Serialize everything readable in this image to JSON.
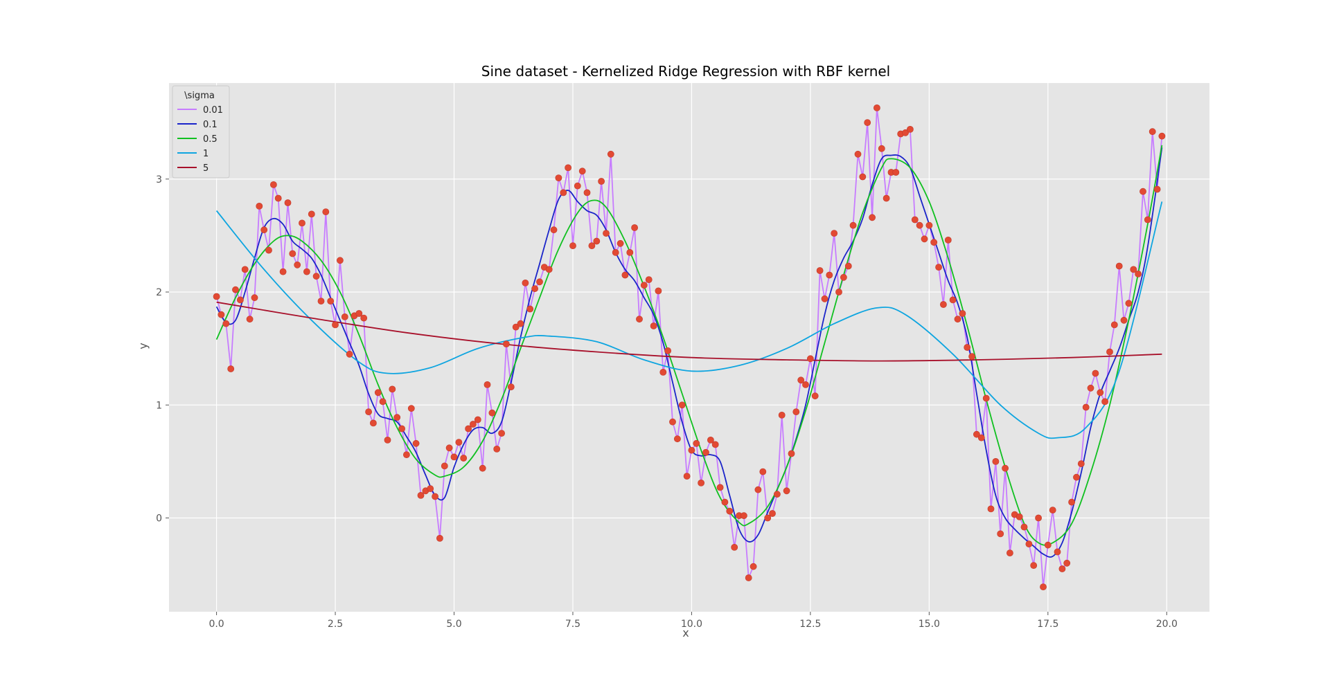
{
  "chart_data": {
    "type": "line",
    "title": "Sine dataset - Kernelized Ridge Regression with RBF kernel",
    "xlabel": "x",
    "ylabel": "y",
    "xlim": [
      -1.0,
      20.9
    ],
    "ylim": [
      -0.83,
      3.85
    ],
    "xticks": [
      0.0,
      2.5,
      5.0,
      7.5,
      10.0,
      12.5,
      15.0,
      17.5,
      20.0
    ],
    "xtick_labels": [
      "0.0",
      "2.5",
      "5.0",
      "7.5",
      "10.0",
      "12.5",
      "15.0",
      "17.5",
      "20.0"
    ],
    "yticks": [
      0,
      1,
      2,
      3
    ],
    "ytick_labels": [
      "0",
      "1",
      "2",
      "3"
    ],
    "grid": true,
    "legend": {
      "title": "\\sigma",
      "placement": "top-left"
    },
    "scatter_color": "#E24A33",
    "x_start": 0.0,
    "x_step": 0.1,
    "points_y": [
      1.96,
      1.8,
      1.72,
      1.32,
      2.02,
      1.93,
      2.2,
      1.76,
      1.95,
      2.76,
      2.55,
      2.37,
      2.95,
      2.83,
      2.18,
      2.79,
      2.34,
      2.24,
      2.61,
      2.18,
      2.69,
      2.14,
      1.92,
      2.71,
      1.92,
      1.71,
      2.28,
      1.78,
      1.45,
      1.79,
      1.81,
      1.77,
      0.94,
      0.84,
      1.11,
      1.03,
      0.69,
      1.14,
      0.89,
      0.79,
      0.56,
      0.97,
      0.66,
      0.2,
      0.24,
      0.26,
      0.19,
      -0.18,
      0.46,
      0.62,
      0.54,
      0.67,
      0.53,
      0.79,
      0.83,
      0.87,
      0.44,
      1.18,
      0.93,
      0.61,
      0.75,
      1.54,
      1.16,
      1.69,
      1.72,
      2.08,
      1.85,
      2.03,
      2.09,
      2.22,
      2.2,
      2.55,
      3.01,
      2.88,
      3.1,
      2.41,
      2.94,
      3.07,
      2.88,
      2.41,
      2.45,
      2.98,
      2.52,
      3.22,
      2.35,
      2.43,
      2.15,
      2.35,
      2.57,
      1.76,
      2.06,
      2.11,
      1.7,
      2.01,
      1.29,
      1.48,
      0.85,
      0.7,
      1.0,
      0.37,
      0.6,
      0.66,
      0.31,
      0.58,
      0.69,
      0.65,
      0.27,
      0.14,
      0.06,
      -0.26,
      0.02,
      0.02,
      -0.53,
      -0.43,
      0.25,
      0.41,
      0.0,
      0.04,
      0.21,
      0.91,
      0.24,
      0.57,
      0.94,
      1.22,
      1.18,
      1.41,
      1.08,
      2.19,
      1.94,
      2.15,
      2.52,
      2.0,
      2.13,
      2.23,
      2.59,
      3.22,
      3.02,
      3.5,
      2.66,
      3.63,
      3.27,
      2.83,
      3.06,
      3.06,
      3.4,
      3.41,
      3.44,
      2.64,
      2.59,
      2.47,
      2.59,
      2.44,
      2.22,
      1.89,
      2.46,
      1.93,
      1.76,
      1.81,
      1.51,
      1.43,
      0.74,
      0.71,
      1.06,
      0.08,
      0.5,
      -0.14,
      0.44,
      -0.31,
      0.03,
      0.01,
      -0.08,
      -0.23,
      -0.42,
      0.0,
      -0.61,
      -0.24,
      0.07,
      -0.3,
      -0.45,
      -0.4,
      0.14,
      0.36,
      0.48,
      0.98,
      1.15,
      1.28,
      1.11,
      1.03,
      1.47,
      1.71,
      2.23,
      1.75,
      1.9,
      2.2,
      2.16,
      2.89,
      2.64,
      3.42,
      2.91,
      3.38
    ],
    "series": [
      {
        "name": "0.01",
        "color": "#C77CFF",
        "interpolates_points": true
      },
      {
        "name": "0.1",
        "color": "#1A24C9",
        "x": [
          0,
          0.2,
          0.4,
          0.6,
          0.8,
          1.0,
          1.2,
          1.4,
          1.6,
          1.8,
          2.0,
          2.2,
          2.4,
          2.6,
          2.8,
          3.0,
          3.2,
          3.4,
          3.6,
          3.8,
          4.0,
          4.2,
          4.4,
          4.6,
          4.8,
          5.0,
          5.2,
          5.4,
          5.6,
          5.8,
          6.0,
          6.2,
          6.4,
          6.6,
          6.8,
          7.0,
          7.2,
          7.4,
          7.6,
          7.8,
          8.0,
          8.2,
          8.4,
          8.6,
          8.8,
          9.0,
          9.2,
          9.4,
          9.6,
          9.8,
          10.0,
          10.2,
          10.4,
          10.6,
          10.8,
          11.0,
          11.2,
          11.4,
          11.6,
          11.8,
          12.0,
          12.2,
          12.4,
          12.6,
          12.8,
          13.0,
          13.2,
          13.4,
          13.6,
          13.8,
          14.0,
          14.2,
          14.4,
          14.6,
          14.8,
          15.0,
          15.2,
          15.4,
          15.6,
          15.8,
          16.0,
          16.2,
          16.4,
          16.6,
          16.8,
          17.0,
          17.2,
          17.4,
          17.6,
          17.8,
          18.0,
          18.2,
          18.4,
          18.6,
          18.8,
          19.0,
          19.2,
          19.4,
          19.6,
          19.9
        ],
        "y": [
          1.87,
          1.73,
          1.75,
          2.0,
          2.3,
          2.57,
          2.65,
          2.6,
          2.45,
          2.38,
          2.3,
          2.15,
          1.95,
          1.75,
          1.55,
          1.35,
          1.1,
          0.92,
          0.88,
          0.85,
          0.72,
          0.58,
          0.38,
          0.2,
          0.18,
          0.45,
          0.65,
          0.78,
          0.8,
          0.75,
          0.85,
          1.2,
          1.6,
          1.95,
          2.25,
          2.55,
          2.82,
          2.9,
          2.8,
          2.72,
          2.68,
          2.55,
          2.35,
          2.2,
          2.1,
          1.95,
          1.8,
          1.55,
          1.2,
          0.85,
          0.6,
          0.55,
          0.56,
          0.5,
          0.2,
          -0.1,
          -0.21,
          -0.15,
          0.05,
          0.25,
          0.45,
          0.7,
          1.0,
          1.4,
          1.8,
          2.1,
          2.3,
          2.45,
          2.65,
          2.95,
          3.18,
          3.21,
          3.2,
          3.1,
          2.85,
          2.6,
          2.35,
          2.1,
          1.9,
          1.6,
          1.1,
          0.6,
          0.2,
          0.0,
          -0.1,
          -0.18,
          -0.25,
          -0.32,
          -0.34,
          -0.22,
          0.05,
          0.4,
          0.8,
          1.1,
          1.3,
          1.5,
          1.75,
          2.0,
          2.4,
          3.28
        ]
      },
      {
        "name": "0.5",
        "color": "#10C020",
        "x": [
          0,
          0.4,
          0.8,
          1.2,
          1.5,
          1.8,
          2.2,
          2.6,
          3.0,
          3.4,
          3.8,
          4.2,
          4.6,
          4.8,
          5.2,
          5.6,
          6.0,
          6.4,
          6.8,
          7.2,
          7.6,
          7.9,
          8.2,
          8.6,
          9.0,
          9.4,
          9.8,
          10.2,
          10.6,
          11.0,
          11.2,
          11.6,
          12.0,
          12.4,
          12.8,
          13.2,
          13.6,
          14.0,
          14.2,
          14.6,
          15.0,
          15.4,
          15.8,
          16.2,
          16.6,
          17.0,
          17.3,
          17.6,
          18.0,
          18.4,
          18.8,
          19.2,
          19.6,
          19.9
        ],
        "y": [
          1.58,
          1.95,
          2.25,
          2.45,
          2.5,
          2.45,
          2.28,
          2.0,
          1.62,
          1.18,
          0.8,
          0.52,
          0.38,
          0.37,
          0.45,
          0.68,
          1.05,
          1.5,
          1.95,
          2.38,
          2.7,
          2.81,
          2.75,
          2.45,
          2.05,
          1.6,
          1.1,
          0.6,
          0.18,
          -0.04,
          -0.05,
          0.1,
          0.45,
          0.95,
          1.55,
          2.15,
          2.7,
          3.1,
          3.18,
          3.1,
          2.8,
          2.3,
          1.7,
          1.05,
          0.45,
          -0.05,
          -0.22,
          -0.22,
          -0.05,
          0.4,
          1.0,
          1.75,
          2.6,
          3.3
        ]
      },
      {
        "name": "1",
        "color": "#0EA5E0",
        "x": [
          0,
          1,
          2,
          3,
          3.6,
          4.5,
          5.5,
          6.5,
          7.0,
          8.0,
          9.0,
          10.0,
          11.0,
          12.0,
          13.0,
          13.9,
          14.5,
          15.5,
          16.5,
          17.3,
          17.7,
          18.3,
          19.0,
          19.9
        ],
        "y": [
          2.72,
          2.2,
          1.75,
          1.38,
          1.28,
          1.33,
          1.5,
          1.6,
          1.61,
          1.56,
          1.4,
          1.3,
          1.35,
          1.5,
          1.72,
          1.86,
          1.8,
          1.45,
          1.0,
          0.75,
          0.71,
          0.8,
          1.3,
          2.8
        ]
      },
      {
        "name": "5",
        "color": "#A8102A",
        "x": [
          0,
          2,
          4,
          6,
          8,
          10,
          12,
          14,
          16,
          18,
          19.9
        ],
        "y": [
          1.91,
          1.77,
          1.64,
          1.54,
          1.47,
          1.42,
          1.4,
          1.39,
          1.4,
          1.42,
          1.45
        ]
      }
    ]
  }
}
